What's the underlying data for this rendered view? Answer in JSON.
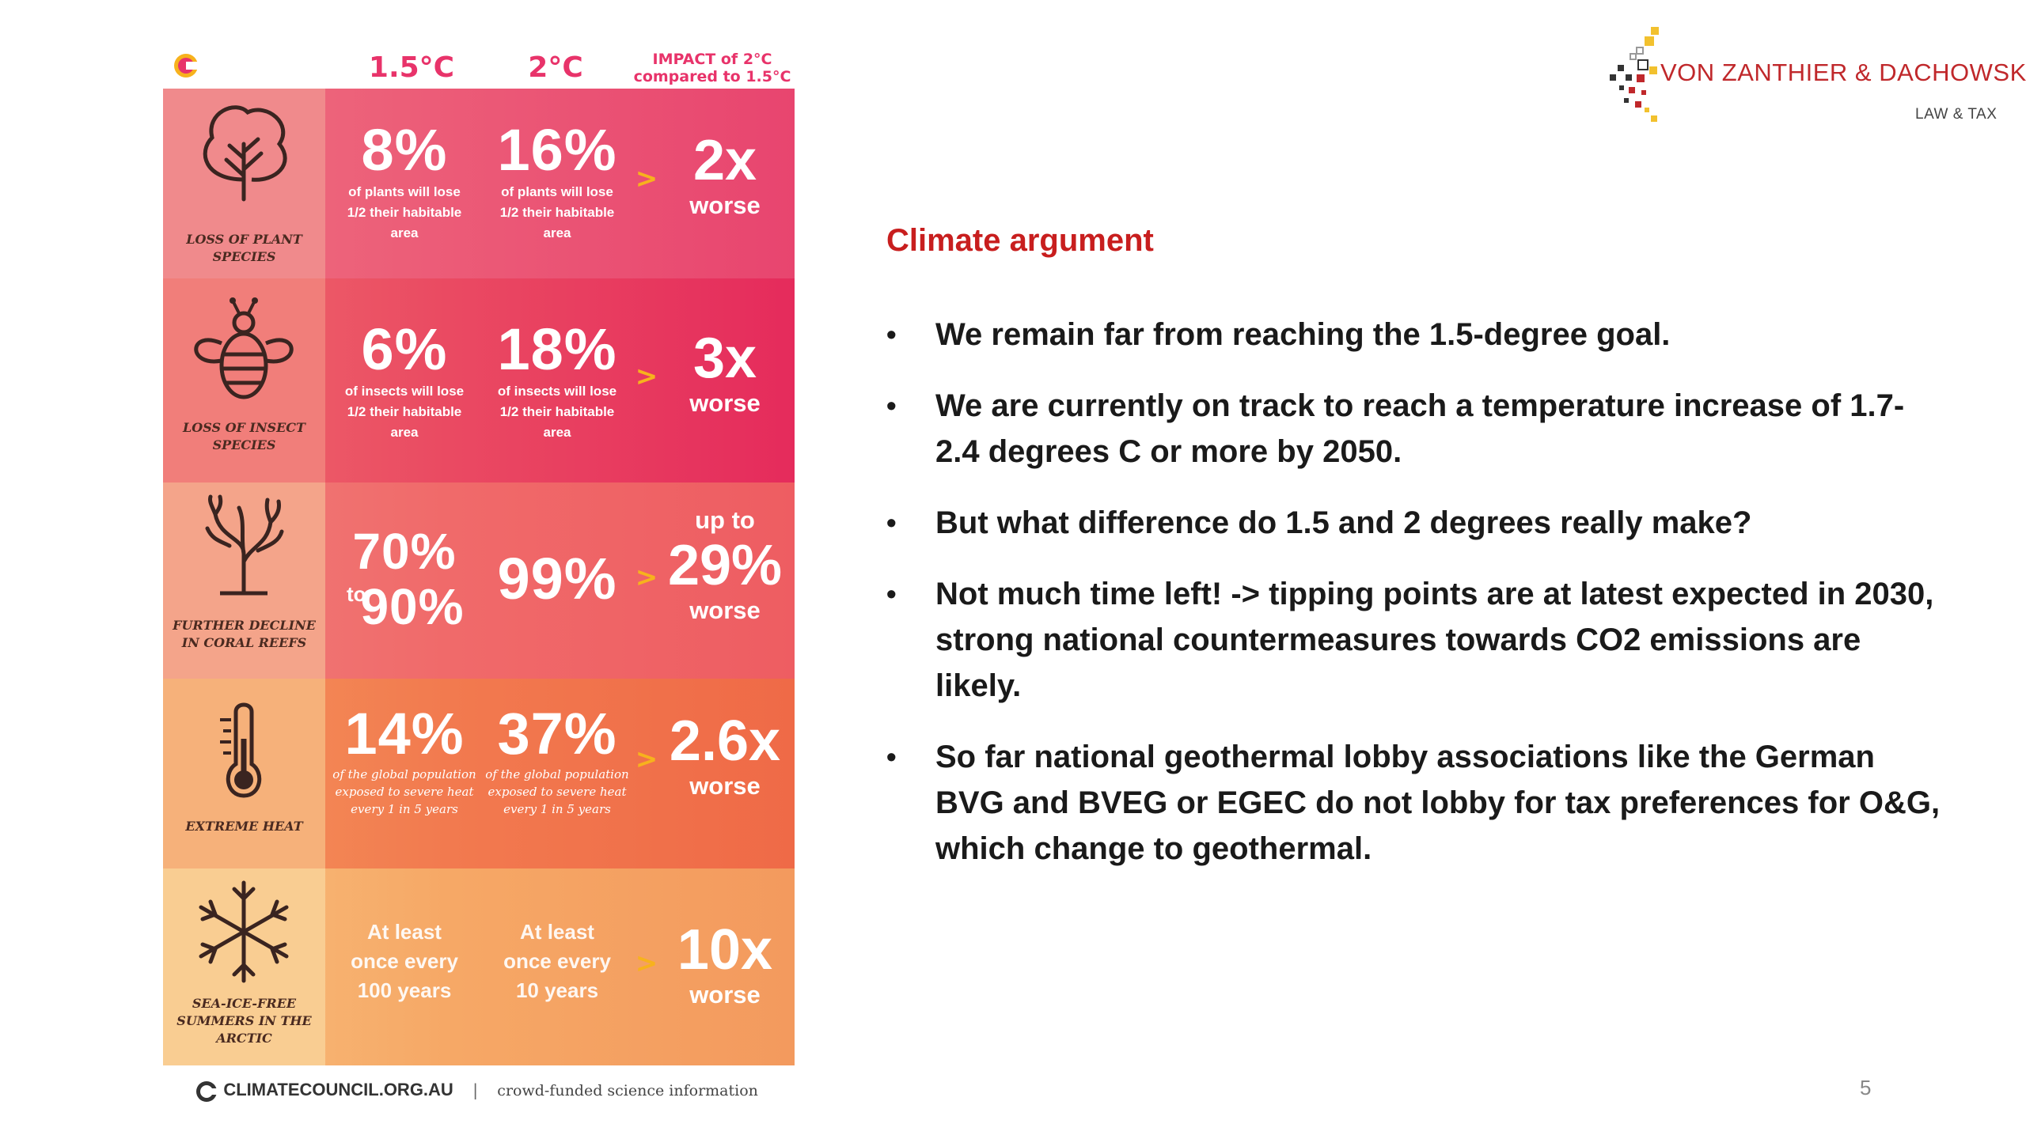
{
  "infographic": {
    "headers": {
      "col_15": "1.5°C",
      "col_2": "2°C",
      "impact_line1": "IMPACT of 2°C",
      "impact_line2": "compared to 1.5°C"
    },
    "rows": [
      {
        "label": "LOSS OF PLANT SPECIES",
        "v15": "8%",
        "v15_text": "of plants will lose 1/2 their habitable area",
        "v2": "16%",
        "v2_text": "of plants will lose 1/2 their habitable area",
        "impact": "2x",
        "impact_sub": "worse",
        "icon": "tree-icon"
      },
      {
        "label": "LOSS OF INSECT SPECIES",
        "v15": "6%",
        "v15_text": "of insects will lose 1/2 their habitable area",
        "v2": "18%",
        "v2_text": "of insects will lose 1/2 their habitable area",
        "impact": "3x",
        "impact_sub": "worse",
        "icon": "bee-icon"
      },
      {
        "label": "FURTHER DECLINE IN CORAL REEFS",
        "v15_a": "70%",
        "v15_to": "to",
        "v15_b": "90%",
        "v2": "99%",
        "impact_pre": "up to",
        "impact": "29%",
        "impact_sub": "worse",
        "icon": "coral-icon"
      },
      {
        "label": "EXTREME HEAT",
        "v15": "14%",
        "v15_text": "of the global population exposed to severe heat every 1 in 5 years",
        "v2": "37%",
        "v2_text": "of the global population exposed to severe heat every 1 in 5 years",
        "impact": "2.6x",
        "impact_sub": "worse",
        "icon": "thermometer-icon"
      },
      {
        "label": "SEA-ICE-FREE SUMMERS IN THE ARCTIC",
        "v15": "At least once every 100 years",
        "v2": "At least once every 10 years",
        "impact": "10x",
        "impact_sub": "worse",
        "icon": "snowflake-icon"
      }
    ],
    "arrow": ">",
    "footer": {
      "brand": "CLIMATECOUNCIL.ORG.AU",
      "separator": "|",
      "tagline": "crowd-funded science information"
    }
  },
  "logo": {
    "name": "VON ZANTHIER & DACHOWSKI",
    "sub": "LAW & TAX"
  },
  "slide": {
    "title": "Climate argument",
    "bullets": [
      "We remain far from reaching the 1.5-degree goal.",
      "We are currently on track to reach a temperature increase of 1.7-2.4 degrees C or more by 2050.",
      "But what difference do 1.5 and 2 degrees really make?",
      "Not much time left! -> tipping points are at latest expected in 2030, strong national countermeasures towards CO2 emissions are likely.",
      "So far national geothermal lobby associations like the German BVG and BVEG or EGEC do not lobby for tax preferences for O&G, which change to geothermal."
    ],
    "bullet_symbol": "•",
    "page_number": "5"
  },
  "colors": {
    "accent_red": "#c81e1e",
    "header_pink": "#e8336a",
    "arrow_yellow": "#f7b21d"
  }
}
